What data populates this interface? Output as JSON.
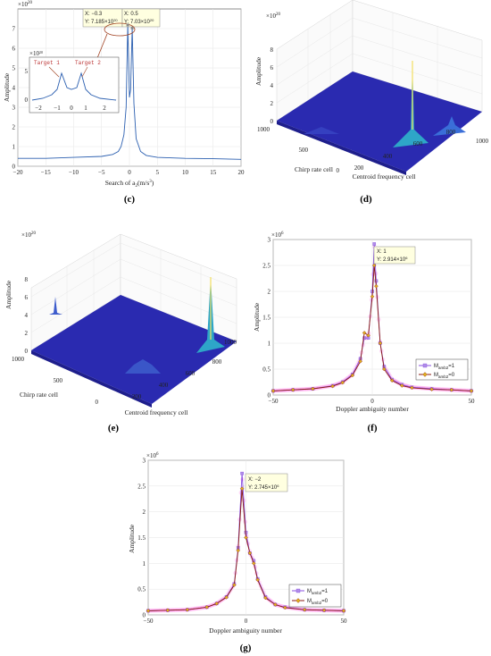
{
  "panels": {
    "c": {
      "label": "(c)",
      "ylabel": "Amplitude",
      "xlabel": "Search of a",
      "xlabel_sub": "2",
      "xlabel_unit": "(m/s",
      "xlabel_unit_sup": "3",
      "xlabel_close": ")",
      "exponent": "×10",
      "exponent_pow": "20",
      "xticks": [
        "−20",
        "−15",
        "−10",
        "−5",
        "0",
        "5",
        "10",
        "15",
        "20"
      ],
      "yticks": [
        "0",
        "1",
        "2",
        "3",
        "4",
        "5",
        "6",
        "7"
      ],
      "dt1": {
        "x": "X: −0.3",
        "y": "Y: 7.185×10",
        "y_pow": "20"
      },
      "dt2": {
        "x": "X: 0.5",
        "y": "Y: 7.03×10",
        "y_pow": "20"
      },
      "inset": {
        "exponent": "×10",
        "exponent_pow": "20",
        "target1": "Target 1",
        "target2": "Target 2",
        "xticks": [
          "−2",
          "−1",
          "0",
          "1",
          "2"
        ],
        "yticks": [
          "0",
          "5"
        ]
      }
    },
    "d": {
      "label": "(d)",
      "zlabel": "Amplitude",
      "exponent": "×10",
      "exponent_pow": "20",
      "zticks": [
        "0",
        "2",
        "4",
        "6",
        "8"
      ],
      "chirp_label": "Chirp rate cell",
      "chirp_ticks": [
        "1000",
        "500",
        "0"
      ],
      "centroid_label": "Centroid frequency cell",
      "centroid_ticks": [
        "200",
        "400",
        "600",
        "800",
        "1000"
      ]
    },
    "e": {
      "label": "(e)",
      "zlabel": "Amplitude",
      "exponent": "×10",
      "exponent_pow": "20",
      "zticks": [
        "0",
        "2",
        "4",
        "6",
        "8"
      ],
      "chirp_label": "Chirp rate cell",
      "chirp_ticks": [
        "1000",
        "500",
        "0"
      ],
      "centroid_label": "Centroid frequency cell",
      "centroid_ticks": [
        "200",
        "400",
        "600",
        "800",
        "1000"
      ]
    },
    "f": {
      "label": "(f)",
      "ylabel": "Amplitude",
      "xlabel": "Doppler ambiguity number",
      "exponent": "×10",
      "exponent_pow": "6",
      "xticks": [
        "−50",
        "0",
        "50"
      ],
      "yticks": [
        "0",
        "0.5",
        "1",
        "1.5",
        "2",
        "2.5",
        "3"
      ],
      "dt": {
        "x": "X: 1",
        "y": "Y: 2.914×10",
        "y_pow": "6"
      },
      "legend": [
        {
          "pre": "M",
          "sub": "amb2",
          "post": "=1"
        },
        {
          "pre": "M",
          "sub": "amb2",
          "post": "=0"
        }
      ]
    },
    "g": {
      "label": "(g)",
      "ylabel": "Amplitude",
      "xlabel": "Doppler ambiguity number",
      "exponent": "×10",
      "exponent_pow": "6",
      "xticks": [
        "−50",
        "0",
        "50"
      ],
      "yticks": [
        "0",
        "0.5",
        "1",
        "1.5",
        "2",
        "2.5",
        "3"
      ],
      "dt": {
        "x": "X: −2",
        "y": "Y: 2.745×10",
        "y_pow": "6"
      },
      "legend": [
        {
          "pre": "M",
          "sub": "amb2",
          "post": "=1"
        },
        {
          "pre": "M",
          "sub": "amb2",
          "post": "=0"
        }
      ]
    }
  },
  "colors": {
    "line": "#2b5fb0",
    "purple": "#8a4fe0",
    "brown": "#8a1a10",
    "marker_fill": "#e0b020",
    "magenta": "#ff60e0",
    "surface": "#2a2ab0"
  },
  "chart_data": [
    {
      "type": "line",
      "panel": "c",
      "xlabel": "Search of a2 (m/s3)",
      "ylabel": "Amplitude",
      "xlim": [
        -20,
        20
      ],
      "ylim": [
        0,
        8
      ],
      "series": [
        {
          "x": [
            -20,
            -15,
            -10,
            -5,
            -3,
            -2,
            -1.5,
            -1,
            -0.6,
            -0.3,
            0,
            0.2,
            0.5,
            0.8,
            1.2,
            2,
            3,
            5,
            10,
            15,
            20
          ],
          "values": [
            0.4,
            0.4,
            0.45,
            0.5,
            0.6,
            0.75,
            1.0,
            1.6,
            3.0,
            7.185,
            3.5,
            3.9,
            7.03,
            3.2,
            1.4,
            0.75,
            0.55,
            0.45,
            0.4,
            0.38,
            0.35
          ]
        }
      ]
    },
    {
      "type": "line",
      "panel": "f",
      "xlabel": "Doppler ambiguity number",
      "ylabel": "Amplitude",
      "xlim": [
        -50,
        50
      ],
      "ylim": [
        0,
        3
      ],
      "series": [
        {
          "name": "Mamb2=1",
          "x": [
            -50,
            -40,
            -30,
            -20,
            -15,
            -10,
            -6,
            -4,
            -2,
            0,
            1,
            2,
            4,
            6,
            10,
            15,
            20,
            30,
            40,
            50
          ],
          "values": [
            0.08,
            0.1,
            0.12,
            0.18,
            0.25,
            0.4,
            0.7,
            1.1,
            1.1,
            2.0,
            2.914,
            2.2,
            1.0,
            0.55,
            0.3,
            0.2,
            0.15,
            0.12,
            0.1,
            0.08
          ]
        },
        {
          "name": "Mamb2=0",
          "x": [
            -50,
            -40,
            -30,
            -20,
            -15,
            -10,
            -6,
            -4,
            -2,
            0,
            1,
            2,
            4,
            6,
            10,
            15,
            20,
            30,
            40,
            50
          ],
          "values": [
            0.08,
            0.1,
            0.12,
            0.17,
            0.24,
            0.38,
            0.65,
            1.2,
            1.15,
            1.9,
            2.5,
            2.1,
            1.0,
            0.5,
            0.28,
            0.18,
            0.14,
            0.11,
            0.1,
            0.08
          ]
        }
      ]
    },
    {
      "type": "line",
      "panel": "g",
      "xlabel": "Doppler ambiguity number",
      "ylabel": "Amplitude",
      "xlim": [
        -50,
        50
      ],
      "ylim": [
        0,
        3
      ],
      "series": [
        {
          "name": "Mamb2=1",
          "x": [
            -50,
            -40,
            -30,
            -20,
            -15,
            -10,
            -6,
            -4,
            -2,
            0,
            2,
            4,
            6,
            10,
            15,
            20,
            30,
            40,
            50
          ],
          "values": [
            0.08,
            0.09,
            0.1,
            0.15,
            0.22,
            0.35,
            0.6,
            1.3,
            2.745,
            1.6,
            1.2,
            1.05,
            0.7,
            0.35,
            0.2,
            0.15,
            0.1,
            0.09,
            0.08
          ]
        },
        {
          "name": "Mamb2=0",
          "x": [
            -50,
            -40,
            -30,
            -20,
            -15,
            -10,
            -6,
            -4,
            -2,
            0,
            2,
            4,
            6,
            10,
            15,
            20,
            30,
            40,
            50
          ],
          "values": [
            0.08,
            0.09,
            0.1,
            0.15,
            0.22,
            0.34,
            0.58,
            1.25,
            2.45,
            1.5,
            1.2,
            1.0,
            0.68,
            0.33,
            0.2,
            0.14,
            0.1,
            0.09,
            0.08
          ]
        }
      ]
    }
  ]
}
